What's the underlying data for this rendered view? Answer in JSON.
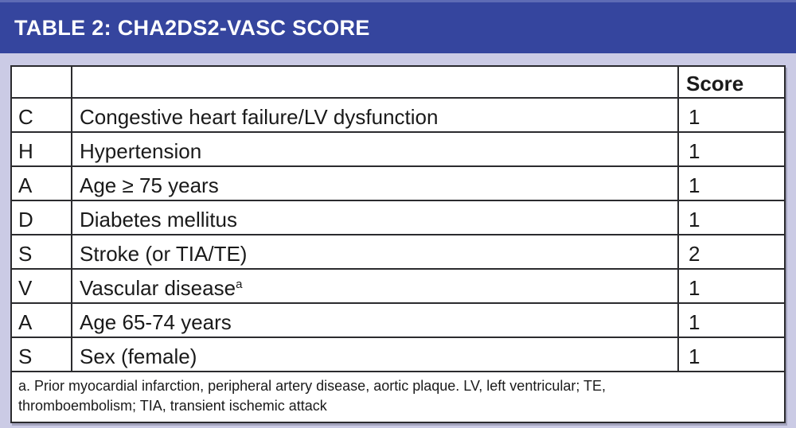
{
  "title": "TABLE 2: CHA2DS2-VASC SCORE",
  "table": {
    "header": {
      "score": "Score"
    },
    "rows": [
      {
        "letter": "C",
        "criterion": "Congestive heart failure/LV dysfunction",
        "score": "1"
      },
      {
        "letter": "H",
        "criterion": "Hypertension",
        "score": "1"
      },
      {
        "letter": "A",
        "criterion": "Age ≥ 75 years",
        "score": "1"
      },
      {
        "letter": "D",
        "criterion": "Diabetes mellitus",
        "score": "1"
      },
      {
        "letter": "S",
        "criterion": "Stroke (or TIA/TE)",
        "score": "2"
      },
      {
        "letter": "V",
        "criterion": "Vascular disease",
        "footnote_marker": "a",
        "score": "1"
      },
      {
        "letter": "A",
        "criterion": "Age 65-74 years",
        "score": "1"
      },
      {
        "letter": "S",
        "criterion": "Sex (female)",
        "score": "1"
      }
    ],
    "footnote_line1": "a. Prior myocardial infarction, peripheral artery disease, aortic plaque. LV, left ventricular; TE,",
    "footnote_line2": "thromboembolism; TIA, transient ischemic attack"
  },
  "colors": {
    "header_bg": "#35459E",
    "header_top_edge": "#5E6BB5",
    "page_bg": "#CBCBE5",
    "table_border": "#2B2B2E",
    "text": "#1A1A1A",
    "title_text": "#FFFFFF",
    "table_bg": "#FFFFFF"
  }
}
